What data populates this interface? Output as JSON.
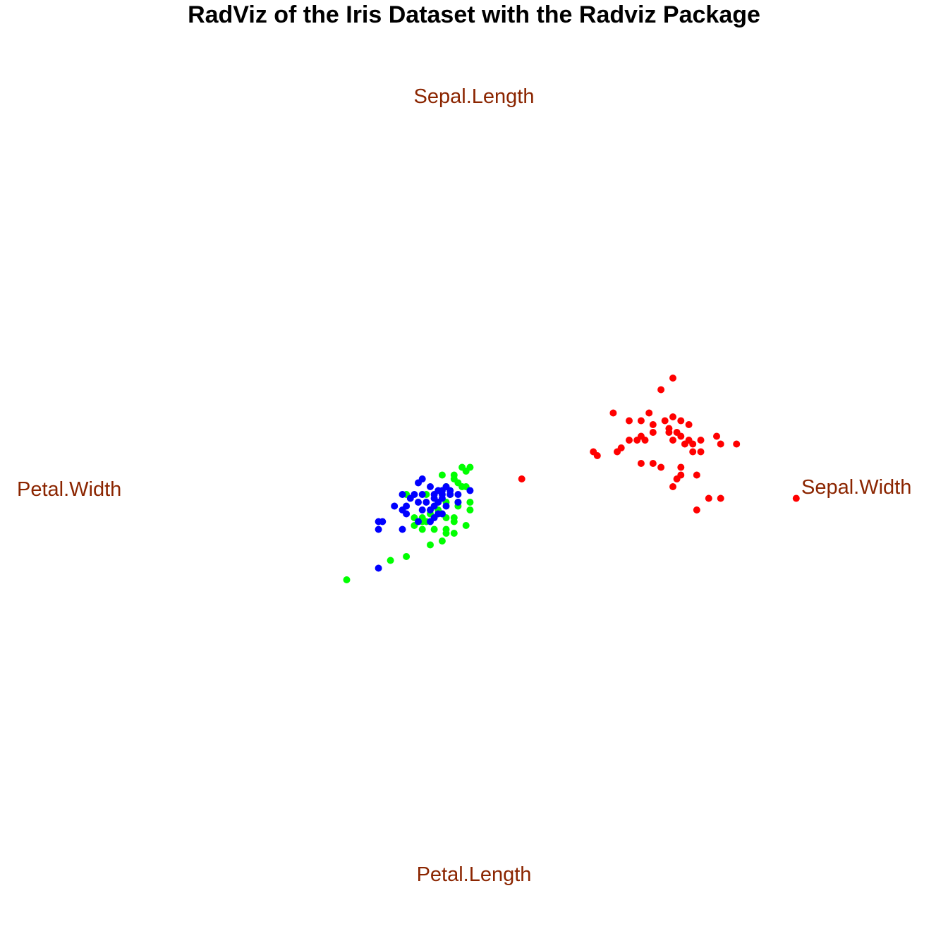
{
  "chart_data": {
    "type": "scatter",
    "subtype": "radviz",
    "title": "RadViz of the Iris Dataset with the Radviz Package",
    "xlim": [
      -1,
      1
    ],
    "ylim": [
      -1,
      1
    ],
    "grid": false,
    "legend": "none",
    "anchor_color": "#8B2500",
    "anchors": [
      {
        "label": "Sepal.Length",
        "x": 0,
        "y": 1
      },
      {
        "label": "Sepal.Width",
        "x": 1,
        "y": 0
      },
      {
        "label": "Petal.Length",
        "x": 0,
        "y": -1
      },
      {
        "label": "Petal.Width",
        "x": -1,
        "y": 0
      }
    ],
    "series": [
      {
        "color": "#FF0000",
        "points": [
          [
            0.5,
            0.28
          ],
          [
            0.47,
            0.25
          ],
          [
            0.35,
            0.19
          ],
          [
            0.42,
            0.17
          ],
          [
            0.44,
            0.19
          ],
          [
            0.48,
            0.17
          ],
          [
            0.5,
            0.18
          ],
          [
            0.45,
            0.16
          ],
          [
            0.49,
            0.15
          ],
          [
            0.52,
            0.17
          ],
          [
            0.39,
            0.17
          ],
          [
            0.42,
            0.13
          ],
          [
            0.45,
            0.14
          ],
          [
            0.49,
            0.14
          ],
          [
            0.51,
            0.14
          ],
          [
            0.54,
            0.16
          ],
          [
            0.52,
            0.13
          ],
          [
            0.43,
            0.12
          ],
          [
            0.39,
            0.12
          ],
          [
            0.41,
            0.12
          ],
          [
            0.5,
            0.12
          ],
          [
            0.53,
            0.11
          ],
          [
            0.54,
            0.12
          ],
          [
            0.55,
            0.11
          ],
          [
            0.57,
            0.12
          ],
          [
            0.61,
            0.13
          ],
          [
            0.62,
            0.11
          ],
          [
            0.66,
            0.11
          ],
          [
            0.3,
            0.09
          ],
          [
            0.31,
            0.08
          ],
          [
            0.36,
            0.09
          ],
          [
            0.37,
            0.1
          ],
          [
            0.55,
            0.09
          ],
          [
            0.57,
            0.09
          ],
          [
            0.45,
            0.06
          ],
          [
            0.42,
            0.06
          ],
          [
            0.47,
            0.05
          ],
          [
            0.52,
            0.05
          ],
          [
            0.52,
            0.03
          ],
          [
            0.51,
            0.02
          ],
          [
            0.56,
            0.03
          ],
          [
            0.5,
            0.0
          ],
          [
            0.59,
            -0.03
          ],
          [
            0.62,
            -0.03
          ],
          [
            0.56,
            -0.06
          ],
          [
            0.81,
            -0.03
          ],
          [
            0.12,
            0.02
          ]
        ]
      },
      {
        "color": "#00FF00",
        "points": [
          [
            -0.03,
            0.05
          ],
          [
            -0.01,
            0.05
          ],
          [
            -0.02,
            0.04
          ],
          [
            -0.05,
            0.03
          ],
          [
            -0.08,
            0.03
          ],
          [
            -0.05,
            0.02
          ],
          [
            -0.04,
            0.01
          ],
          [
            -0.03,
            0.0
          ],
          [
            -0.07,
            0.0
          ],
          [
            -0.02,
            0.0
          ],
          [
            -0.17,
            -0.02
          ],
          [
            -0.12,
            -0.02
          ],
          [
            -0.06,
            -0.02
          ],
          [
            -0.07,
            -0.04
          ],
          [
            -0.04,
            -0.04
          ],
          [
            -0.04,
            -0.05
          ],
          [
            -0.01,
            -0.04
          ],
          [
            -0.01,
            -0.06
          ],
          [
            -0.09,
            -0.06
          ],
          [
            -0.11,
            -0.07
          ],
          [
            -0.13,
            -0.08
          ],
          [
            -0.12,
            -0.09
          ],
          [
            -0.15,
            -0.08
          ],
          [
            -0.07,
            -0.08
          ],
          [
            -0.08,
            -0.07
          ],
          [
            -0.05,
            -0.08
          ],
          [
            -0.07,
            -0.11
          ],
          [
            -0.05,
            -0.12
          ],
          [
            -0.02,
            -0.1
          ],
          [
            -0.05,
            -0.09
          ],
          [
            -0.1,
            -0.11
          ],
          [
            -0.13,
            -0.11
          ],
          [
            -0.15,
            -0.1
          ],
          [
            -0.07,
            -0.12
          ],
          [
            -0.08,
            -0.14
          ],
          [
            -0.11,
            -0.15
          ],
          [
            -0.17,
            -0.18
          ],
          [
            -0.21,
            -0.19
          ],
          [
            -0.32,
            -0.24
          ],
          [
            -0.13,
            -0.09
          ]
        ]
      },
      {
        "color": "#0000FF",
        "points": [
          [
            -0.13,
            0.02
          ],
          [
            -0.14,
            0.01
          ],
          [
            -0.11,
            0.0
          ],
          [
            -0.09,
            -0.01
          ],
          [
            -0.08,
            -0.01
          ],
          [
            -0.07,
            0.0
          ],
          [
            -0.06,
            -0.01
          ],
          [
            -0.04,
            -0.02
          ],
          [
            -0.06,
            -0.02
          ],
          [
            -0.08,
            -0.02
          ],
          [
            -0.01,
            -0.01
          ],
          [
            -0.15,
            -0.02
          ],
          [
            -0.18,
            -0.02
          ],
          [
            -0.1,
            -0.02
          ],
          [
            -0.13,
            -0.02
          ],
          [
            -0.16,
            -0.03
          ],
          [
            -0.1,
            -0.03
          ],
          [
            -0.08,
            -0.03
          ],
          [
            -0.12,
            -0.04
          ],
          [
            -0.14,
            -0.04
          ],
          [
            -0.1,
            -0.05
          ],
          [
            -0.07,
            -0.05
          ],
          [
            -0.04,
            -0.04
          ],
          [
            -0.09,
            -0.04
          ],
          [
            -0.2,
            -0.05
          ],
          [
            -0.17,
            -0.05
          ],
          [
            -0.11,
            -0.06
          ],
          [
            -0.13,
            -0.06
          ],
          [
            -0.18,
            -0.06
          ],
          [
            -0.08,
            -0.07
          ],
          [
            -0.09,
            -0.07
          ],
          [
            -0.17,
            -0.07
          ],
          [
            -0.1,
            -0.08
          ],
          [
            -0.14,
            -0.09
          ],
          [
            -0.11,
            -0.09
          ],
          [
            -0.24,
            -0.09
          ],
          [
            -0.23,
            -0.09
          ],
          [
            -0.24,
            -0.11
          ],
          [
            -0.18,
            -0.11
          ],
          [
            -0.24,
            -0.21
          ]
        ]
      }
    ]
  }
}
